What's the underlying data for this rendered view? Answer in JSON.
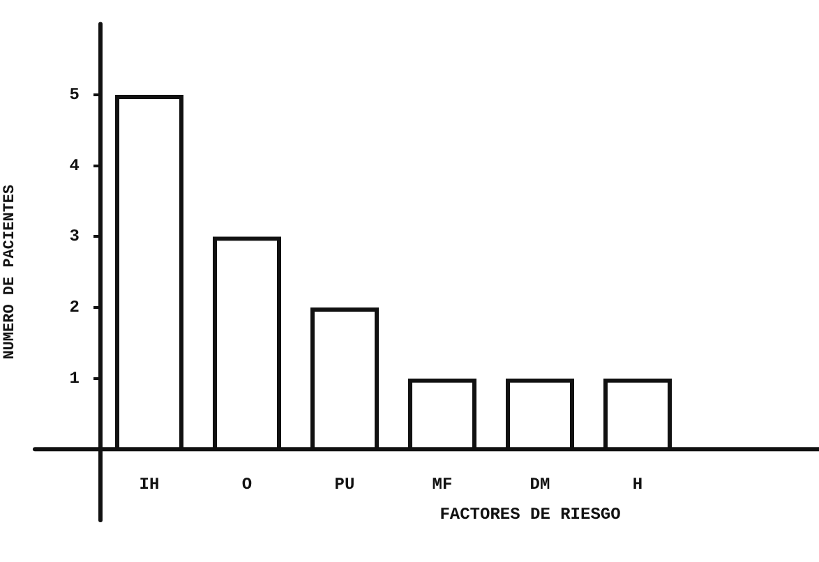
{
  "chart_data": {
    "type": "bar",
    "xlabel": "FACTORES DE RIESGO",
    "ylabel": "NUMERO DE PACIENTES",
    "categories": [
      "IH",
      "O",
      "PU",
      "MF",
      "DM",
      "H"
    ],
    "values": [
      5,
      3,
      2,
      1,
      1,
      1
    ],
    "color": "#111111",
    "ylim": [
      -1,
      6
    ],
    "yticks": [
      1,
      2,
      3,
      4,
      5
    ],
    "grid": false,
    "legend": false
  }
}
